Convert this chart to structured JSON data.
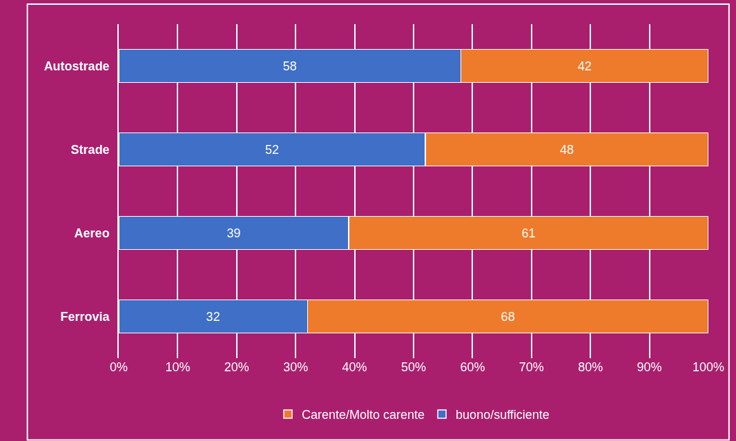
{
  "chart_data": {
    "type": "bar",
    "orientation": "horizontal",
    "stacked": true,
    "categories": [
      "Autostrade",
      "Strade",
      "Aereo",
      "Ferrovia"
    ],
    "series": [
      {
        "name": "buono/sufficiente",
        "color": "#3f6fc6",
        "values": [
          58,
          52,
          39,
          32
        ]
      },
      {
        "name": "Carente/Molto carente",
        "color": "#ee7b2c",
        "values": [
          42,
          48,
          61,
          68
        ]
      }
    ],
    "xlim": [
      0,
      100
    ],
    "xticks": [
      {
        "value": 0,
        "label": "0%"
      },
      {
        "value": 10,
        "label": "10%"
      },
      {
        "value": 20,
        "label": "20%"
      },
      {
        "value": 30,
        "label": "30%"
      },
      {
        "value": 40,
        "label": "40%"
      },
      {
        "value": 50,
        "label": "50%"
      },
      {
        "value": 60,
        "label": "60%"
      },
      {
        "value": 70,
        "label": "70%"
      },
      {
        "value": 80,
        "label": "80%"
      },
      {
        "value": 90,
        "label": "90%"
      },
      {
        "value": 100,
        "label": "100%"
      }
    ],
    "grid": "x",
    "legend": "bottom",
    "data_labels": true
  }
}
